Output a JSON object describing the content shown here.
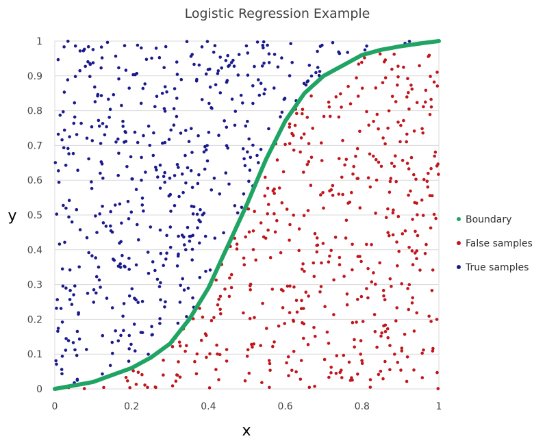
{
  "chart_data": {
    "type": "scatter",
    "title": "Logistic Regression Example",
    "xlabel": "x",
    "ylabel": "y",
    "xlim": [
      0,
      1
    ],
    "ylim": [
      0,
      1
    ],
    "xticks": [
      "0",
      "0.2",
      "0.4",
      "0.6",
      "0.8",
      "1"
    ],
    "yticks": [
      "0",
      "0.1",
      "0.2",
      "0.3",
      "0.4",
      "0.5",
      "0.6",
      "0.7",
      "0.8",
      "0.9",
      "1"
    ],
    "grid": "horizontal",
    "legend_position": "right",
    "boundary": {
      "x": [
        0,
        0.05,
        0.1,
        0.15,
        0.2,
        0.25,
        0.3,
        0.35,
        0.4,
        0.45,
        0.5,
        0.55,
        0.6,
        0.65,
        0.7,
        0.75,
        0.8,
        0.85,
        0.9,
        0.95,
        1.0
      ],
      "y": [
        0.0,
        0.01,
        0.02,
        0.04,
        0.06,
        0.09,
        0.13,
        0.2,
        0.29,
        0.41,
        0.53,
        0.66,
        0.77,
        0.85,
        0.9,
        0.93,
        0.96,
        0.975,
        0.985,
        0.993,
        1.0
      ]
    },
    "sample_count_per_series": 480,
    "series": [
      {
        "name": "Boundary",
        "color": "#1fa463",
        "kind": "line"
      },
      {
        "name": "False samples",
        "color": "#c0161c",
        "kind": "points",
        "region": "below_boundary"
      },
      {
        "name": "True samples",
        "color": "#1a1a8c",
        "kind": "points",
        "region": "above_boundary"
      }
    ]
  }
}
